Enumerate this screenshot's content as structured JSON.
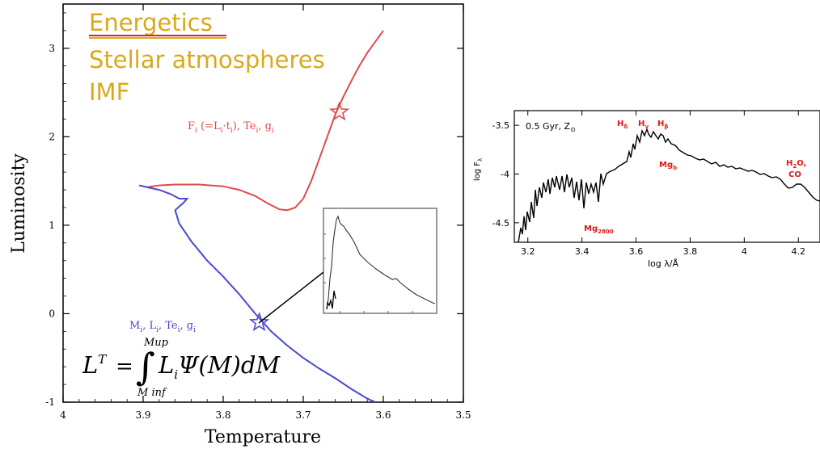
{
  "topics": [
    "Energetics",
    "Stellar atmospheres",
    "IMF"
  ],
  "colors": {
    "topic": "#d9a91a",
    "underline": "#e02020",
    "red_branch": "#e14a4a",
    "blue_branch": "#4a4ad0",
    "spectrum": "#000000",
    "spectrum_labels": "#e01818",
    "pointer": "#000000"
  },
  "main_chart": {
    "type": "line",
    "xlabel": "Temperature",
    "ylabel": "Luminosity",
    "xlim": [
      4.0,
      3.5
    ],
    "ylim": [
      -1.0,
      3.5
    ],
    "xticks": [
      "4",
      "3.9",
      "3.8",
      "3.7",
      "3.6",
      "3.5"
    ],
    "yticks": [
      "-1",
      "0",
      "1",
      "2",
      "3"
    ],
    "axis_inverted_x": true,
    "annotations": {
      "upper_star": "F<sub>i</sub> (=L<sub>i</sub>·t<sub>i</sub>), Te<sub>i</sub>, g<sub>i</sub>",
      "upper_star_text": "F",
      "upper_star_sub1": "i",
      "upper_star_mid": " (=L",
      "upper_star_sub2": "i",
      "upper_star_dot": "·t",
      "upper_star_sub3": "i",
      "upper_star_end": "), Te",
      "upper_star_sub4": "i",
      "upper_star_g": ", g",
      "upper_star_sub5": "i",
      "lower_star_M": "M",
      "lower_star_L": ", L",
      "lower_star_Te": ", Te",
      "lower_star_g": ", g",
      "sub_i": "i"
    },
    "formula": {
      "L": "L",
      "T": "T",
      "eq": "=",
      "upper": "Mup",
      "lower": "M inf",
      "body": "L",
      "body_sub": "i",
      "psi": "Ψ(M)dM"
    }
  },
  "chart_data": [
    {
      "type": "line",
      "title": "",
      "xlabel": "Temperature",
      "ylabel": "Luminosity",
      "xlim": [
        4.0,
        3.5
      ],
      "ylim": [
        -1.0,
        3.5
      ],
      "grid": false,
      "series": [
        {
          "color": "#e14a4a",
          "x": [
            3.895,
            3.88,
            3.86,
            3.83,
            3.8,
            3.78,
            3.76,
            3.745,
            3.73,
            3.72,
            3.71,
            3.7,
            3.69,
            3.68,
            3.67,
            3.66,
            3.65,
            3.64,
            3.63,
            3.62,
            3.6
          ],
          "y": [
            1.43,
            1.45,
            1.46,
            1.46,
            1.44,
            1.4,
            1.33,
            1.25,
            1.18,
            1.17,
            1.2,
            1.3,
            1.5,
            1.75,
            2.0,
            2.25,
            2.45,
            2.63,
            2.8,
            2.95,
            3.2
          ]
        },
        {
          "color": "#4a4ad0",
          "x": [
            3.905,
            3.88,
            3.865,
            3.855,
            3.845,
            3.85,
            3.86,
            3.855,
            3.84,
            3.82,
            3.8,
            3.78,
            3.76,
            3.74,
            3.72,
            3.7,
            3.68,
            3.66,
            3.64,
            3.62,
            3.61
          ],
          "y": [
            1.45,
            1.4,
            1.35,
            1.3,
            1.3,
            1.25,
            1.17,
            1.02,
            0.82,
            0.6,
            0.42,
            0.22,
            0.0,
            -0.2,
            -0.36,
            -0.5,
            -0.62,
            -0.73,
            -0.85,
            -0.96,
            -1.0
          ]
        }
      ],
      "markers": [
        {
          "label": "F_i (=L_i·t_i), Te_i, g_i",
          "x": 3.655,
          "y": 2.28,
          "shape": "star",
          "color": "#e14a4a"
        },
        {
          "label": "M_i, L_i, Te_i, g_i",
          "x": 3.755,
          "y": -0.1,
          "shape": "star",
          "color": "#4a4ad0"
        }
      ]
    },
    {
      "type": "line",
      "title": "0.5 Gyr, Z",
      "xlabel": "log λ/Å",
      "ylabel": "log F",
      "xlim": [
        3.15,
        4.28
      ],
      "ylim": [
        -4.7,
        -3.35
      ],
      "xticks": [
        "3.2",
        "3.4",
        "3.6",
        "3.8",
        "4",
        "4.2"
      ],
      "yticks": [
        "-3.5",
        "-4",
        "-4.5"
      ],
      "series": [
        {
          "name": "",
          "x": [
            3.15,
            3.18,
            3.2,
            3.22,
            3.25,
            3.28,
            3.3,
            3.32,
            3.35,
            3.38,
            3.4,
            3.42,
            3.45,
            3.48,
            3.5,
            3.52,
            3.55,
            3.57,
            3.58,
            3.6,
            3.62,
            3.65,
            3.7,
            3.75,
            3.8,
            3.85,
            3.9,
            3.95,
            4.0,
            4.05,
            4.1,
            4.15,
            4.2,
            4.25,
            4.28
          ],
          "y": [
            -4.7,
            -4.55,
            -4.3,
            -4.15,
            -4.05,
            -3.95,
            -3.98,
            -3.95,
            -4.05,
            -4.05,
            -4.1,
            -4.0,
            -3.95,
            -3.9,
            -3.87,
            -3.82,
            -3.8,
            -3.72,
            -3.6,
            -3.55,
            -3.56,
            -3.6,
            -3.67,
            -3.66,
            -3.72,
            -3.78,
            -3.75,
            -3.8,
            -3.82,
            -3.87,
            -3.9,
            -3.93,
            -3.99,
            -4.1,
            -4.15
          ]
        }
      ],
      "annotations": [
        "H₈",
        "H_γ",
        "H_β",
        "Mg_b",
        "Mg_2800",
        "H₂O,",
        "CO"
      ]
    }
  ],
  "spectrum_chart": {
    "title": "0.5 Gyr, Z",
    "title_sub": "⊙",
    "xlabel": "log λ/Å",
    "ylabel": "log F",
    "ylabel_sub": "λ",
    "xticks": [
      "3.2",
      "3.4",
      "3.6",
      "3.8",
      "4",
      "4.2"
    ],
    "yticks": [
      "-3.5",
      "-4",
      "-4.5"
    ],
    "labels": {
      "h8": "H",
      "h8_sub": "δ",
      "hg": "H",
      "hg_sub": "γ",
      "hb": "H",
      "hb_sub": "β",
      "mgb": "Mg",
      "mgb_sub": "b",
      "mg2800": "Mg",
      "mg2800_sub": "2800",
      "h2o": "H",
      "h2o_sub": "2",
      "h2o_end": "O,",
      "co": "CO"
    }
  }
}
